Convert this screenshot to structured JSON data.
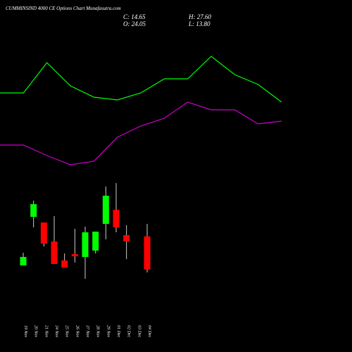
{
  "chart_data": {
    "type": "candlestick",
    "title": "CUMMINSIND 4000 CE Options Chart Munafasutra.com",
    "ohlc_labels": [
      "C: 14.65",
      "H: 27.60",
      "O: 24.05",
      "L: 13.80"
    ],
    "categories": [
      "19 Nov",
      "20 Nov",
      "21 Nov",
      "24 Nov",
      "25 Nov",
      "26 Nov",
      "27 Nov",
      "28 Nov",
      "29 Nov",
      "01 Dec",
      "02 Dec",
      "03 Dec",
      "04 Dec"
    ],
    "open": [
      15.8,
      29.6,
      28.0,
      22.6,
      17.2,
      19.0,
      18.2,
      20.0,
      27.6,
      31.6,
      24.4,
      null,
      24.05
    ],
    "high": [
      19.4,
      34.2,
      28.0,
      29.8,
      19.2,
      26.2,
      26.8,
      25.4,
      38.2,
      39.2,
      27.2,
      null,
      27.6
    ],
    "low": [
      15.8,
      26.6,
      21.2,
      16.2,
      15.2,
      16.6,
      12.0,
      19.2,
      23.2,
      25.2,
      17.6,
      null,
      13.8
    ],
    "close": [
      18.2,
      33.2,
      22.0,
      16.2,
      15.2,
      18.4,
      25.2,
      25.4,
      35.6,
      26.6,
      22.6,
      null,
      14.65
    ],
    "up_color": "#00ff00",
    "down_color": "#ff0000",
    "lines": [
      {
        "color": "#00ff00",
        "values": [
          64.8,
          64.8,
          73.4,
          66.8,
          63.6,
          62.8,
          64.8,
          68.8,
          68.8,
          75.2,
          70.0,
          67.2,
          62.2
        ]
      },
      {
        "color": "#cc00cc",
        "values": [
          50.0,
          50.0,
          47.0,
          44.4,
          45.4,
          52.2,
          55.4,
          57.6,
          62.2,
          60.0,
          60.0,
          56.0,
          56.8
        ]
      }
    ],
    "ylim": [
      0,
      91.2
    ]
  }
}
